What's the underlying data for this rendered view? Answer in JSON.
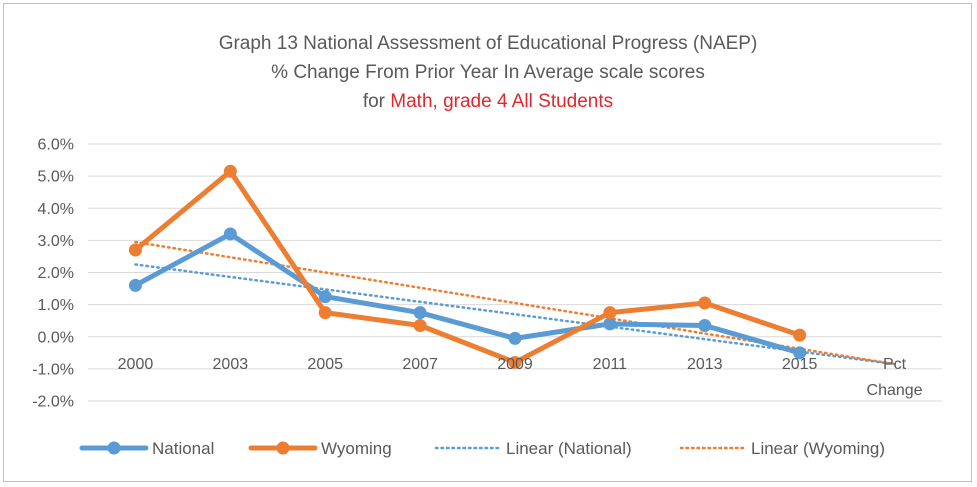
{
  "chart_data": {
    "type": "line",
    "title_line1": "Graph 13 National Assessment of Educational Progress (NAEP)",
    "title_line2": "% Change From Prior Year In Average scale scores",
    "title_line3_prefix": "for ",
    "title_line3_highlight": "Math, grade 4 All Students",
    "categories": [
      "2000",
      "2003",
      "2005",
      "2007",
      "2009",
      "2011",
      "2013",
      "2015",
      "Pct Change"
    ],
    "category_labels": [
      [
        "2000"
      ],
      [
        "2003"
      ],
      [
        "2005"
      ],
      [
        "2007"
      ],
      [
        "2009"
      ],
      [
        "2011"
      ],
      [
        "2013"
      ],
      [
        "2015"
      ],
      [
        "Pct",
        "Change"
      ]
    ],
    "ylim": [
      -2.0,
      6.0
    ],
    "yticks": [
      6.0,
      5.0,
      4.0,
      3.0,
      2.0,
      1.0,
      0.0,
      -1.0,
      -2.0
    ],
    "ytick_labels": [
      "6.0%",
      "5.0%",
      "4.0%",
      "3.0%",
      "2.0%",
      "1.0%",
      "0.0%",
      "-1.0%",
      "-2.0%"
    ],
    "grid": true,
    "legend_position": "bottom",
    "series": [
      {
        "name": "National",
        "color": "#5b9bd5",
        "values": [
          1.6,
          3.2,
          1.25,
          0.75,
          -0.05,
          0.4,
          0.35,
          -0.5,
          null
        ]
      },
      {
        "name": "Wyoming",
        "color": "#ed7d31",
        "values": [
          2.7,
          5.15,
          0.75,
          0.35,
          -0.8,
          0.75,
          1.05,
          0.05,
          null
        ]
      }
    ],
    "trendlines": [
      {
        "name": "Linear (National)",
        "color": "#5b9bd5",
        "start": 2.25,
        "end": -0.85
      },
      {
        "name": "Linear (Wyoming)",
        "color": "#ed7d31",
        "start": 2.95,
        "end": -0.85
      }
    ]
  }
}
